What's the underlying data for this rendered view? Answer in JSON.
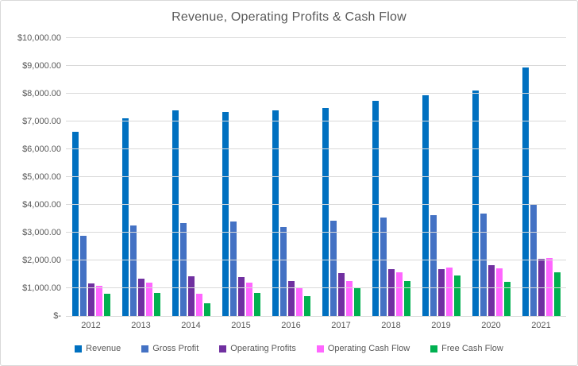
{
  "chart_data": {
    "type": "bar",
    "title": "Revenue, Operating Profits & Cash Flow",
    "categories": [
      "2012",
      "2013",
      "2014",
      "2015",
      "2016",
      "2017",
      "2018",
      "2019",
      "2020",
      "2021"
    ],
    "series": [
      {
        "name": "Revenue",
        "color": "#0070C0",
        "values": [
          6620,
          7120,
          7410,
          7340,
          7410,
          7500,
          7730,
          7950,
          8120,
          8940
        ]
      },
      {
        "name": "Gross Profit",
        "color": "#4472C4",
        "values": [
          2890,
          3260,
          3330,
          3390,
          3210,
          3420,
          3550,
          3620,
          3690,
          4030
        ]
      },
      {
        "name": "Operating Profits",
        "color": "#7030A0",
        "values": [
          1160,
          1340,
          1440,
          1410,
          1250,
          1530,
          1700,
          1700,
          1830,
          2050
        ]
      },
      {
        "name": "Operating Cash Flow",
        "color": "#FF66FF",
        "values": [
          1090,
          1200,
          810,
          1200,
          1040,
          1250,
          1580,
          1750,
          1710,
          2080
        ]
      },
      {
        "name": "Free Cash Flow",
        "color": "#00B050",
        "values": [
          810,
          840,
          470,
          830,
          710,
          990,
          1270,
          1450,
          1240,
          1570
        ]
      }
    ],
    "y_axis": {
      "min": 0,
      "max": 10000,
      "step": 1000,
      "tick_labels": [
        "$-",
        "$1,000.00",
        "$2,000.00",
        "$3,000.00",
        "$4,000.00",
        "$5,000.00",
        "$6,000.00",
        "$7,000.00",
        "$8,000.00",
        "$9,000.00",
        "$10,000.00"
      ]
    },
    "legend_position": "bottom",
    "grid": true,
    "theme": {
      "text_color": "#595959",
      "gridline_color": "#D9D9D9",
      "border_color": "#D9D9D9",
      "background": "#FFFFFF"
    }
  }
}
